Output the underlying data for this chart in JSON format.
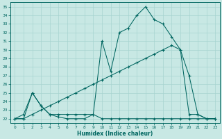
{
  "xlabel": "Humidex (Indice chaleur)",
  "background_color": "#c8e8e4",
  "grid_color": "#a8d4d0",
  "line_color": "#006660",
  "xlim": [
    -0.5,
    23.5
  ],
  "ylim": [
    21.5,
    35.5
  ],
  "yticks": [
    22,
    23,
    24,
    25,
    26,
    27,
    28,
    29,
    30,
    31,
    32,
    33,
    34,
    35
  ],
  "xticks": [
    0,
    1,
    2,
    3,
    4,
    5,
    6,
    7,
    8,
    9,
    10,
    11,
    12,
    13,
    14,
    15,
    16,
    17,
    18,
    19,
    20,
    21,
    22,
    23
  ],
  "line_max": [
    22.0,
    22.0,
    25.0,
    23.5,
    22.5,
    22.5,
    22.5,
    22.5,
    22.5,
    22.5,
    31.0,
    27.5,
    32.0,
    32.5,
    34.0,
    35.0,
    33.5,
    33.0,
    31.5,
    30.0,
    27.0,
    22.5,
    22.0,
    22.0
  ],
  "line_mean": [
    22.0,
    22.0,
    22.5,
    23.0,
    23.5,
    24.0,
    24.5,
    25.0,
    25.5,
    26.0,
    26.5,
    27.0,
    27.5,
    28.0,
    28.5,
    29.0,
    29.5,
    30.0,
    30.5,
    30.0,
    22.5,
    22.5,
    22.0,
    22.0
  ],
  "line_min": [
    22.0,
    22.5,
    25.0,
    23.5,
    22.5,
    22.2,
    22.0,
    22.0,
    22.0,
    22.5,
    22.0,
    22.0,
    22.0,
    22.0,
    22.0,
    22.0,
    22.0,
    22.0,
    22.0,
    22.0,
    22.0,
    22.0,
    22.0,
    22.0
  ]
}
